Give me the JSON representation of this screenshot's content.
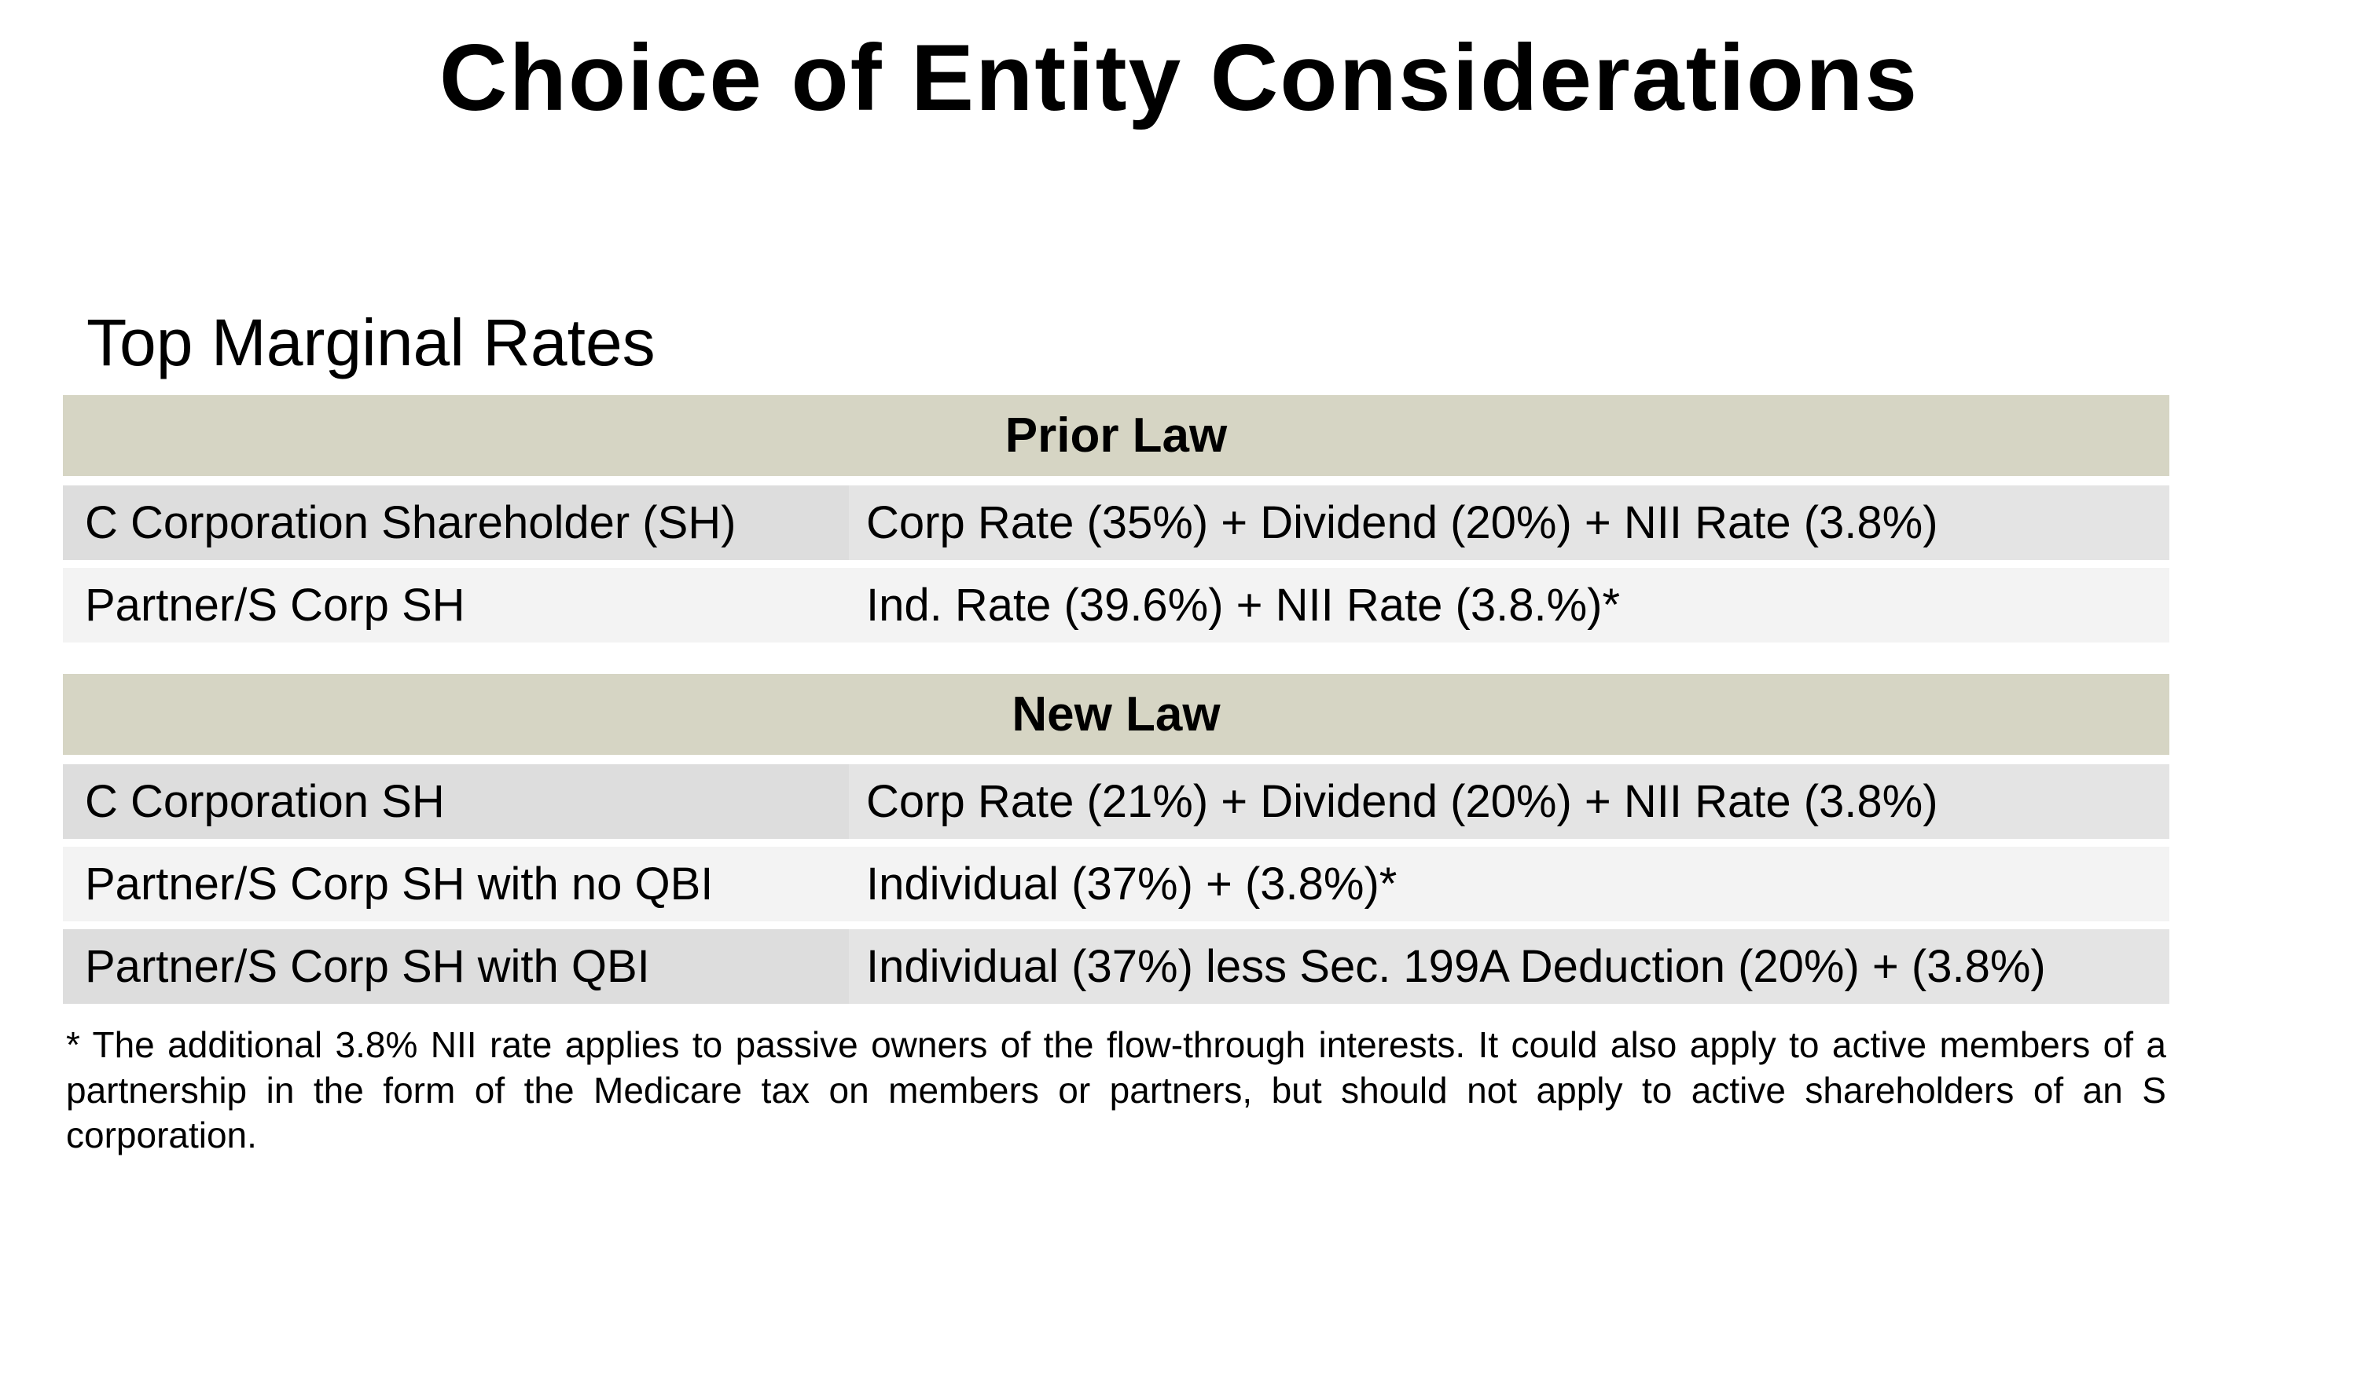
{
  "title": "Choice of Entity Considerations",
  "subtitle": "Top Marginal Rates",
  "colors": {
    "background": "#ffffff",
    "text": "#000000",
    "header_bg": "#d6d5c4",
    "row_dark_left": "#dddddd",
    "row_dark_right": "#e4e4e4",
    "row_light": "#f3f3f3"
  },
  "tables": {
    "prior_law": {
      "header": "Prior Law",
      "rows": [
        {
          "label": "C Corporation Shareholder (SH)",
          "value": "Corp Rate (35%) + Dividend (20%) + NII Rate (3.8%)"
        },
        {
          "label": "Partner/S Corp SH",
          "value": "Ind. Rate (39.6%) + NII Rate (3.8.%)*"
        }
      ]
    },
    "new_law": {
      "header": "New Law",
      "rows": [
        {
          "label": "C Corporation SH",
          "value": "Corp Rate (21%) + Dividend (20%) + NII Rate (3.8%)"
        },
        {
          "label": "Partner/S Corp SH with no QBI",
          "value": "Individual (37%) + (3.8%)*"
        },
        {
          "label": "Partner/S Corp SH with QBI",
          "value": "Individual (37%) less Sec. 199A Deduction (20%) + (3.8%)"
        }
      ]
    }
  },
  "footnote": "* The additional 3.8% NII rate applies to passive owners of the flow-through interests. It could also apply to active members of a partnership in the form of the Medicare tax  on members or partners, but should not apply to active shareholders of an S corporation."
}
